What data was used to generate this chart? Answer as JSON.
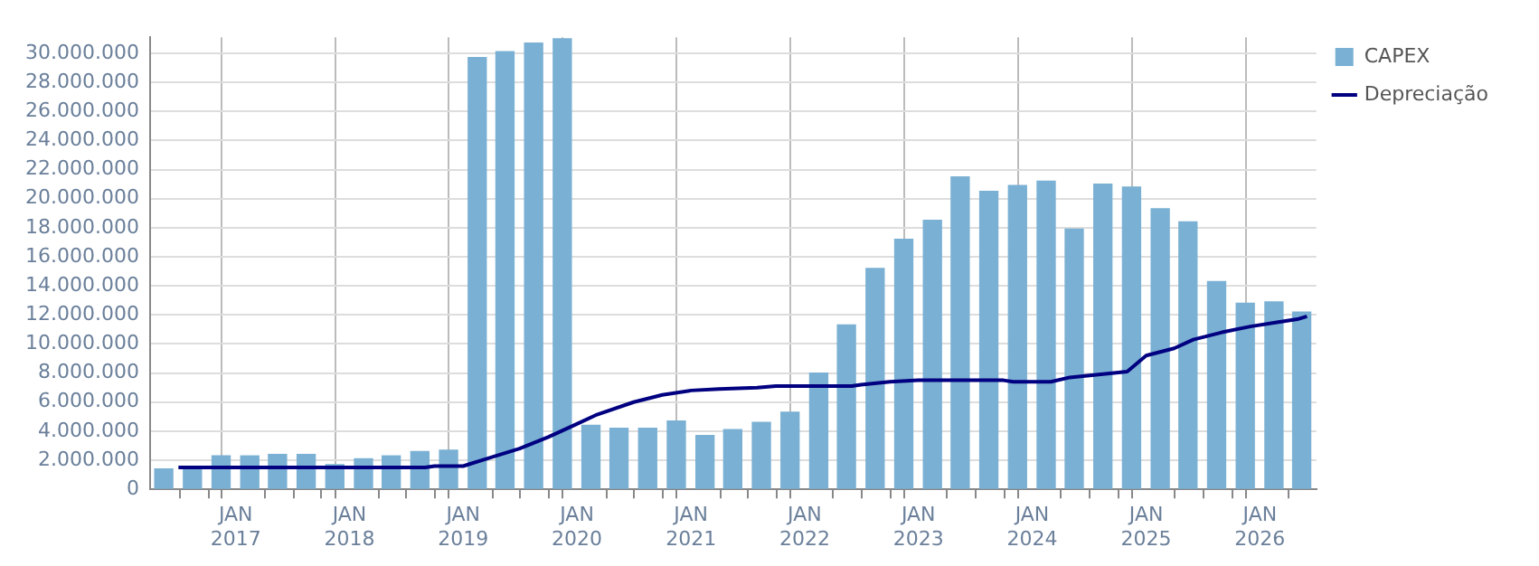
{
  "chart_data": {
    "type": "bar",
    "xlim": [
      "2016-04-01",
      "2026-07-01"
    ],
    "xticks": [
      {
        "value": "2016-07-01",
        "label": null
      },
      {
        "value": "2016-10-01",
        "label": null
      },
      {
        "value": "2017-01-01",
        "label": "JAN 2017"
      },
      {
        "value": "2017-04-01",
        "label": null
      },
      {
        "value": "2017-07-01",
        "label": null
      },
      {
        "value": "2017-10-01",
        "label": null
      },
      {
        "value": "2018-01-01",
        "label": "JAN 2018"
      },
      {
        "value": "2018-04-01",
        "label": null
      },
      {
        "value": "2018-07-01",
        "label": null
      },
      {
        "value": "2018-10-01",
        "label": null
      },
      {
        "value": "2019-01-01",
        "label": "JAN 2019"
      },
      {
        "value": "2019-04-01",
        "label": null
      },
      {
        "value": "2019-07-01",
        "label": null
      },
      {
        "value": "2019-10-01",
        "label": null
      },
      {
        "value": "2020-01-01",
        "label": "JAN 2020"
      },
      {
        "value": "2020-04-01",
        "label": null
      },
      {
        "value": "2020-07-01",
        "label": null
      },
      {
        "value": "2020-10-01",
        "label": null
      },
      {
        "value": "2021-01-01",
        "label": "JAN 2021"
      },
      {
        "value": "2021-04-01",
        "label": null
      },
      {
        "value": "2021-07-01",
        "label": null
      },
      {
        "value": "2021-10-01",
        "label": null
      },
      {
        "value": "2022-01-01",
        "label": "JAN 2022"
      },
      {
        "value": "2022-04-01",
        "label": null
      },
      {
        "value": "2022-07-01",
        "label": null
      },
      {
        "value": "2022-10-01",
        "label": null
      },
      {
        "value": "2023-01-01",
        "label": "JAN 2023"
      },
      {
        "value": "2023-04-01",
        "label": null
      },
      {
        "value": "2023-07-01",
        "label": null
      },
      {
        "value": "2023-10-01",
        "label": null
      },
      {
        "value": "2024-01-01",
        "label": "JAN 2024"
      },
      {
        "value": "2024-04-01",
        "label": null
      },
      {
        "value": "2024-07-01",
        "label": null
      },
      {
        "value": "2024-10-01",
        "label": null
      },
      {
        "value": "2025-01-01",
        "label": "JAN 2025"
      },
      {
        "value": "2025-04-01",
        "label": null
      },
      {
        "value": "2025-07-01",
        "label": null
      },
      {
        "value": "2025-10-01",
        "label": null
      },
      {
        "value": "2026-01-01",
        "label": "JAN 2026"
      },
      {
        "value": "2026-04-01",
        "label": null
      }
    ],
    "ylim": [
      0,
      31100000
    ],
    "yticks": [
      {
        "value": 0,
        "label": "0"
      },
      {
        "value": 2000000,
        "label": "2.000.000"
      },
      {
        "value": 4000000,
        "label": "4.000.000"
      },
      {
        "value": 6000000,
        "label": "6.000.000"
      },
      {
        "value": 8000000,
        "label": "8.000.000"
      },
      {
        "value": 10000000,
        "label": "10.000.000"
      },
      {
        "value": 12000000,
        "label": "12.000.000"
      },
      {
        "value": 14000000,
        "label": "14.000.000"
      },
      {
        "value": 16000000,
        "label": "16.000.000"
      },
      {
        "value": 18000000,
        "label": "18.000.000"
      },
      {
        "value": 20000000,
        "label": "20.000.000"
      },
      {
        "value": 22000000,
        "label": "22.000.000"
      },
      {
        "value": 24000000,
        "label": "24.000.000"
      },
      {
        "value": 26000000,
        "label": "26.000.000"
      },
      {
        "value": 28000000,
        "label": "28.000.000"
      },
      {
        "value": 30000000,
        "label": "30.000.000"
      }
    ],
    "grid": true,
    "legend": "top right",
    "marker": "none",
    "line_style": "solid",
    "series": [
      {
        "name": "CAPEX",
        "color": "#7ab0d3",
        "x": [
          "2016-05-15",
          "2016-08-15",
          "2016-11-15",
          "2017-02-15",
          "2017-05-15",
          "2017-08-15",
          "2017-11-15",
          "2018-02-15",
          "2018-05-15",
          "2018-08-15",
          "2018-11-15",
          "2019-02-15",
          "2019-05-15",
          "2019-08-15",
          "2019-11-15",
          "2020-02-15",
          "2020-05-15",
          "2020-08-15",
          "2020-11-15",
          "2021-02-15",
          "2021-05-15",
          "2021-08-15",
          "2021-11-15",
          "2022-02-15",
          "2022-05-15",
          "2022-08-15",
          "2022-11-15",
          "2023-02-15",
          "2023-05-15",
          "2023-08-15",
          "2023-11-15",
          "2024-02-15",
          "2024-05-15",
          "2024-08-15",
          "2024-11-15",
          "2025-02-15",
          "2025-05-15",
          "2025-08-15",
          "2025-11-15",
          "2026-02-15",
          "2026-05-15"
        ],
        "values": [
          1400000,
          1500000,
          2300000,
          2300000,
          2400000,
          2400000,
          1700000,
          2100000,
          2300000,
          2600000,
          2700000,
          29700000,
          30100000,
          30700000,
          31000000,
          4400000,
          4200000,
          4200000,
          4700000,
          3700000,
          4100000,
          4600000,
          5300000,
          8000000,
          11300000,
          15200000,
          17200000,
          18500000,
          21500000,
          20500000,
          20900000,
          21200000,
          17900000,
          21000000,
          20800000,
          19300000,
          18400000,
          14300000,
          12800000,
          12900000,
          12200000
        ]
      },
      {
        "name": "Depreciação",
        "type": "line",
        "color": "#000080",
        "x": [
          "2016-07",
          "2018-09",
          "2018-10",
          "2019-01",
          "2019-03",
          "2019-07",
          "2019-10",
          "2020-01",
          "2020-03",
          "2020-07",
          "2020-10",
          "2021-01",
          "2021-04",
          "2021-08",
          "2021-10",
          "2022-06",
          "2022-07",
          "2022-10",
          "2023-01",
          "2023-10",
          "2023-11",
          "2024-03",
          "2024-05",
          "2024-08",
          "2024-11",
          "2025-01",
          "2025-04",
          "2025-06",
          "2025-09",
          "2025-12",
          "2026-03",
          "2026-05",
          "2026-06"
        ],
        "values": [
          1500000,
          1500000,
          1600000,
          1600000,
          2000000,
          2800000,
          3600000,
          4500000,
          5100000,
          6000000,
          6500000,
          6800000,
          6900000,
          7000000,
          7100000,
          7100000,
          7200000,
          7400000,
          7500000,
          7500000,
          7400000,
          7400000,
          7700000,
          7900000,
          8100000,
          9200000,
          9700000,
          10300000,
          10800000,
          11200000,
          11500000,
          11700000,
          11900000
        ]
      }
    ]
  }
}
